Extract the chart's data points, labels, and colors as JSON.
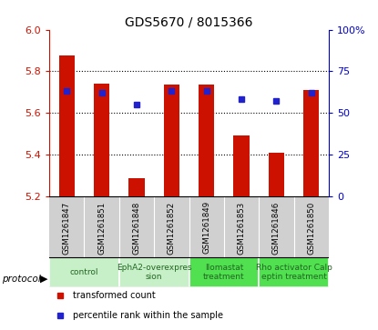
{
  "title": "GDS5670 / 8015366",
  "samples": [
    "GSM1261847",
    "GSM1261851",
    "GSM1261848",
    "GSM1261852",
    "GSM1261849",
    "GSM1261853",
    "GSM1261846",
    "GSM1261850"
  ],
  "red_values": [
    5.875,
    5.74,
    5.285,
    5.735,
    5.735,
    5.49,
    5.41,
    5.71
  ],
  "blue_values": [
    63,
    62,
    55,
    63,
    63,
    58,
    57,
    62
  ],
  "ylim_left": [
    5.2,
    6.0
  ],
  "ylim_right": [
    0,
    100
  ],
  "yticks_left": [
    5.2,
    5.4,
    5.6,
    5.8,
    6.0
  ],
  "yticks_right": [
    0,
    25,
    50,
    75,
    100
  ],
  "protocol_groups": [
    {
      "label": "control",
      "indices": [
        0,
        1
      ],
      "color": "#c8f0c8"
    },
    {
      "label": "EphA2-overexpres\nsion",
      "indices": [
        2,
        3
      ],
      "color": "#c8f0c8"
    },
    {
      "label": "Ilomastat\ntreatment",
      "indices": [
        4,
        5
      ],
      "color": "#50e050"
    },
    {
      "label": "Rho activator Calp\neptin treatment",
      "indices": [
        6,
        7
      ],
      "color": "#50e050"
    }
  ],
  "bar_color": "#cc1100",
  "dot_color": "#2222cc",
  "bar_bottom": 5.2,
  "background_color": "#ffffff",
  "sample_bg_color": "#d0d0d0",
  "protocol_label": "protocol",
  "legend_items": [
    {
      "label": "transformed count",
      "color": "#cc1100"
    },
    {
      "label": "percentile rank within the sample",
      "color": "#2222cc"
    }
  ],
  "grid_yticks": [
    5.4,
    5.6,
    5.8
  ],
  "left_axis_color": "#cc1100",
  "right_axis_color": "#0000cc"
}
